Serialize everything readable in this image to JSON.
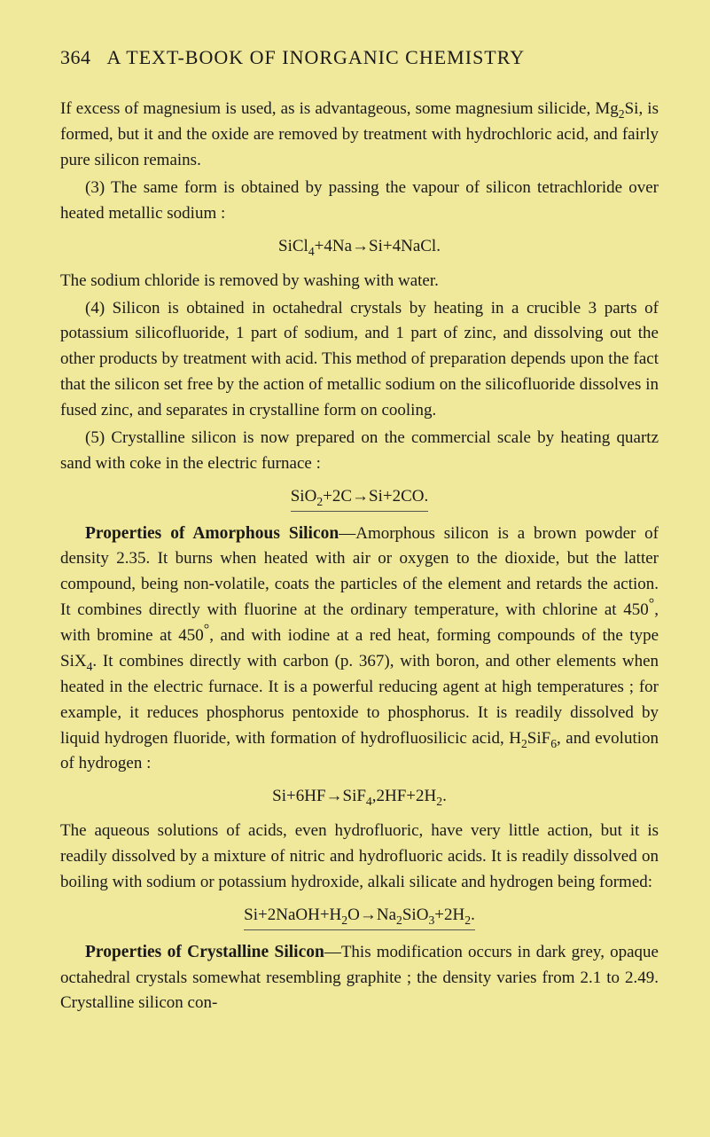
{
  "header": {
    "page_number": "364",
    "title": "A TEXT-BOOK OF INORGANIC CHEMISTRY"
  },
  "paragraphs": {
    "p1": "If excess of magnesium is used, as is advantageous, some magnesium silicide, Mg",
    "p1_sub1": "2",
    "p1_cont1": "Si, is formed, but it and the oxide are removed by treatment with hydrochloric acid, and fairly pure silicon remains.",
    "p2": "(3) The same form is obtained by passing the vapour of silicon tetrachloride over heated metallic sodium :",
    "formula1_a": "SiCl",
    "formula1_sub1": "4",
    "formula1_b": "+4Na→Si+4NaCl.",
    "p3": "The sodium chloride is removed by washing with water.",
    "p4": "(4) Silicon is obtained in octahedral crystals by heating in a crucible 3 parts of potassium silicofluoride, 1 part of sodium, and 1 part of zinc, and dissolving out the other products by treatment with acid. This method of preparation depends upon the fact that the silicon set free by the action of metallic sodium on the silicofluoride dissolves in fused zinc, and separates in crystalline form on cooling.",
    "p5": "(5) Crystalline silicon is now prepared on the commercial scale by heating quartz sand with coke in the electric furnace :",
    "formula2_a": "SiO",
    "formula2_sub1": "2",
    "formula2_b": "+2C→Si+2CO.",
    "heading1": "Properties of Amorphous Silicon",
    "p6": "—Amorphous silicon is a brown powder of density 2.35. It burns when heated with air or oxygen to the dioxide, but the latter compound, being non-volatile, coats the particles of the element and retards the action. It combines directly with fluorine at the ordinary temperature, with chlorine at 450",
    "p6_deg1": "°",
    "p6_cont1": ", with bromine at 450",
    "p6_deg2": "°",
    "p6_cont2": ", and with iodine at a red heat, forming compounds of the type SiX",
    "p6_sub1": "4",
    "p6_cont3": ". It combines directly with carbon (p. 367), with boron, and other elements when heated in the electric furnace. It is a powerful reducing agent at high temperatures ; for example, it reduces phosphorus pentoxide to phosphorus. It is readily dissolved by liquid hydrogen fluoride, with formation of hydrofluosilicic acid, H",
    "p6_sub2": "2",
    "p6_cont4": "SiF",
    "p6_sub3": "6",
    "p6_cont5": ", and evolution of hydrogen :",
    "formula3_a": "Si+6HF→SiF",
    "formula3_sub1": "4",
    "formula3_b": ",2HF+2H",
    "formula3_sub2": "2",
    "formula3_c": ".",
    "p7": "The aqueous solutions of acids, even hydrofluoric, have very little action, but it is readily dissolved by a mixture of nitric and hydrofluoric acids. It is readily dissolved on boiling with sodium or potassium hydroxide, alkali silicate and hydrogen being formed:",
    "formula4_a": "Si+2NaOH+H",
    "formula4_sub1": "2",
    "formula4_b": "O→Na",
    "formula4_sub2": "2",
    "formula4_c": "SiO",
    "formula4_sub3": "3",
    "formula4_d": "+2H",
    "formula4_sub4": "2",
    "formula4_e": ".",
    "heading2": "Properties of Crystalline Silicon",
    "p8": "—This modification occurs in dark grey, opaque octahedral crystals somewhat resembling graphite ; the density varies from 2.1 to 2.49. Crystalline silicon con-"
  }
}
